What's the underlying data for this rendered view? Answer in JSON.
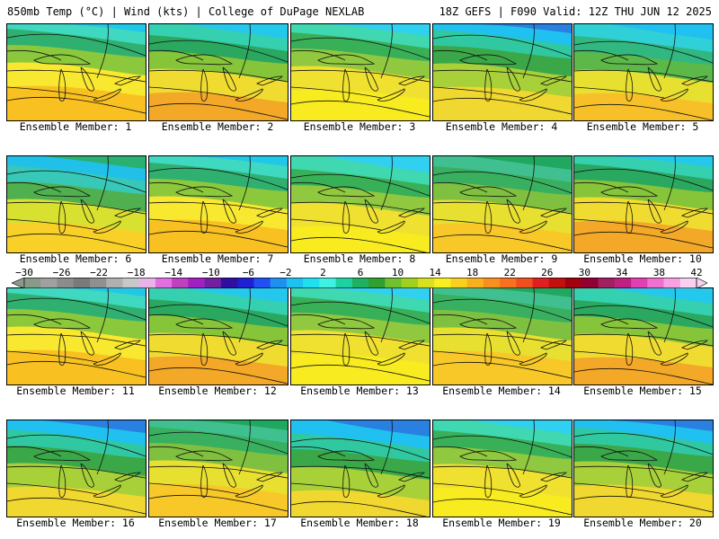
{
  "header": {
    "left": "850mb Temp (°C) | Wind (kts) | College of DuPage NEXLAB",
    "right": "18Z GEFS | F090 Valid: 12Z THU JUN 12 2025"
  },
  "members": [
    {
      "label": "Ensemble Member: 1",
      "scheme": 0
    },
    {
      "label": "Ensemble Member: 2",
      "scheme": 1
    },
    {
      "label": "Ensemble Member: 3",
      "scheme": 2
    },
    {
      "label": "Ensemble Member: 4",
      "scheme": 3
    },
    {
      "label": "Ensemble Member: 5",
      "scheme": 4
    },
    {
      "label": "Ensemble Member: 6",
      "scheme": 5
    },
    {
      "label": "Ensemble Member: 7",
      "scheme": 0
    },
    {
      "label": "Ensemble Member: 8",
      "scheme": 2
    },
    {
      "label": "Ensemble Member: 9",
      "scheme": 6
    },
    {
      "label": "Ensemble Member: 10",
      "scheme": 1
    },
    {
      "label": "Ensemble Member: 11",
      "scheme": 0
    },
    {
      "label": "Ensemble Member: 12",
      "scheme": 1
    },
    {
      "label": "Ensemble Member: 13",
      "scheme": 2
    },
    {
      "label": "Ensemble Member: 14",
      "scheme": 6
    },
    {
      "label": "Ensemble Member: 15",
      "scheme": 1
    },
    {
      "label": "Ensemble Member: 16",
      "scheme": 3
    },
    {
      "label": "Ensemble Member: 17",
      "scheme": 6
    },
    {
      "label": "Ensemble Member: 18",
      "scheme": 3
    },
    {
      "label": "Ensemble Member: 19",
      "scheme": 2
    },
    {
      "label": "Ensemble Member: 20",
      "scheme": 3
    }
  ],
  "colorbar": {
    "ticks": [
      "−30",
      "−26",
      "−22",
      "−18",
      "−14",
      "−10",
      "−6",
      "−2",
      "2",
      "6",
      "10",
      "14",
      "18",
      "22",
      "26",
      "30",
      "34",
      "38",
      "42"
    ],
    "colors": [
      "#8a9a8a",
      "#a0a0a0",
      "#8c8c8c",
      "#7a7a7a",
      "#909090",
      "#b0b0b0",
      "#c8c8c8",
      "#e8b4e8",
      "#e070e0",
      "#c040c0",
      "#a020c0",
      "#7020a0",
      "#3010a0",
      "#2020d0",
      "#2050f0",
      "#2090f0",
      "#20c0f0",
      "#20e0f0",
      "#40f0e0",
      "#20d0a0",
      "#20b060",
      "#30a030",
      "#70c030",
      "#a0d020",
      "#d8e020",
      "#f8f020",
      "#f8d020",
      "#f8b020",
      "#f89020",
      "#f87020",
      "#f05020",
      "#e02020",
      "#c01010",
      "#a00010",
      "#900030",
      "#a02060",
      "#c02080",
      "#e040b0",
      "#f070d0",
      "#f8a0e0",
      "#f8d0f0"
    ]
  },
  "schemes": [
    [
      "#1fc8e8",
      "#3fd8c0",
      "#2fb070",
      "#8cc83c",
      "#f8e830",
      "#f8c020"
    ],
    [
      "#24c8ec",
      "#35d0b0",
      "#2aa860",
      "#86c43a",
      "#f0dc30",
      "#f4a828"
    ],
    [
      "#30d0f0",
      "#40d8b0",
      "#38b058",
      "#90c840",
      "#f0e030",
      "#f8ec20"
    ],
    [
      "#2a80e0",
      "#20c0f0",
      "#30c8a0",
      "#3aa848",
      "#a8d038",
      "#f0d830"
    ],
    [
      "#20c0f0",
      "#30d0d8",
      "#30b880",
      "#5cb848",
      "#e8e030",
      "#f8c028"
    ],
    [
      "#2ab070",
      "#20c0e8",
      "#38c8b8",
      "#50b050",
      "#d8e030",
      "#f8d028"
    ],
    [
      "#20a860",
      "#40c090",
      "#38b060",
      "#80c040",
      "#e8e030",
      "#f8c828"
    ]
  ]
}
